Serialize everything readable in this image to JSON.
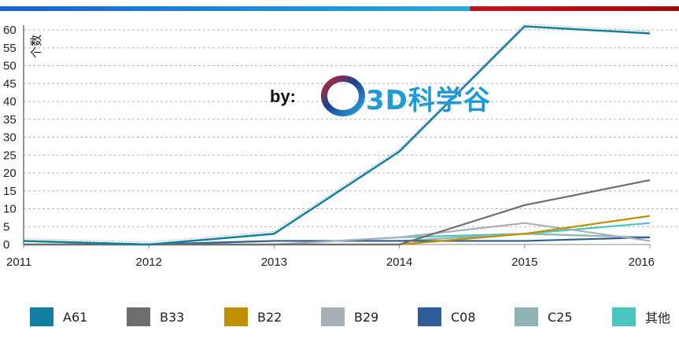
{
  "chart_data": {
    "type": "line",
    "ylabel": "个数",
    "xlabel": "",
    "x": [
      "2011",
      "2012",
      "2013",
      "2014",
      "2015",
      "2016"
    ],
    "ylim": [
      0,
      60
    ],
    "yticks": [
      0,
      5,
      10,
      15,
      20,
      25,
      30,
      35,
      40,
      45,
      50,
      55,
      60
    ],
    "grid": "horizontal dashed",
    "legend_position": "bottom",
    "series": [
      {
        "name": "A61",
        "color": "#137fa0",
        "values": [
          1,
          0,
          3,
          26,
          61,
          59
        ]
      },
      {
        "name": "B33",
        "color": "#6d6d6d",
        "values": [
          0,
          0,
          0,
          0,
          11,
          18
        ]
      },
      {
        "name": "B22",
        "color": "#bf9000",
        "values": [
          0,
          0,
          0,
          0,
          3,
          8
        ]
      },
      {
        "name": "B29",
        "color": "#a5b0b7",
        "values": [
          0,
          0,
          0,
          2,
          6,
          1
        ]
      },
      {
        "name": "C08",
        "color": "#2e5d99",
        "values": [
          1,
          0,
          1,
          1,
          1,
          2
        ]
      },
      {
        "name": "C25",
        "color": "#8db3b5",
        "values": [
          0,
          0,
          1,
          1,
          3,
          2
        ]
      },
      {
        "name": "其他",
        "color": "#49c6c2",
        "values": [
          0,
          0,
          0,
          2,
          3,
          6
        ]
      }
    ]
  },
  "watermark": {
    "prefix": "by:",
    "brand": "3D科学谷",
    "icon": "ring-logo-icon"
  },
  "topbar": {
    "left_color": "#1f8fd8",
    "right_color": "#b31016"
  }
}
